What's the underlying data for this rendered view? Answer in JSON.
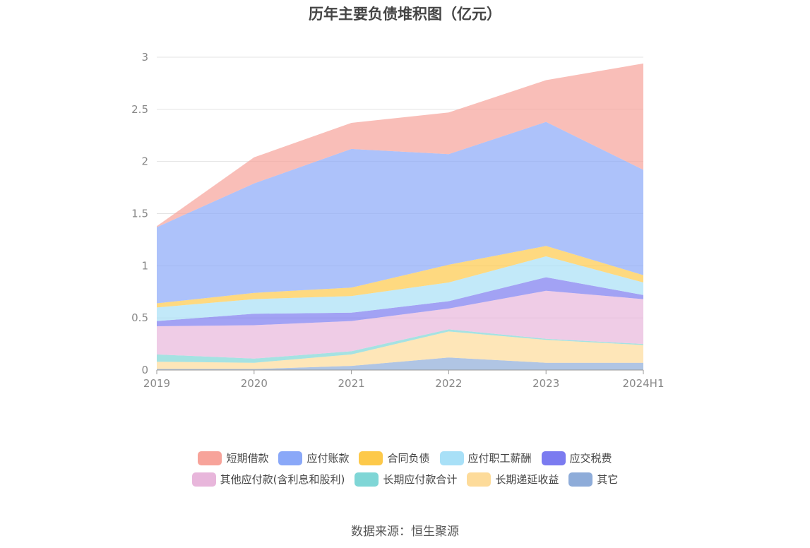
{
  "title": "历年主要负债堆积图（亿元）",
  "source": "数据来源：恒生聚源",
  "chart_data": {
    "type": "area",
    "stacked": true,
    "categories": [
      "2019",
      "2020",
      "2021",
      "2022",
      "2023",
      "2024H1"
    ],
    "yticks": [
      "0",
      "0.5",
      "1",
      "1.5",
      "2",
      "2.5",
      "3"
    ],
    "ylim": [
      0,
      3
    ],
    "grid": true,
    "legend_position": "bottom",
    "series": [
      {
        "name": "其它",
        "color": "#8eacd9",
        "values": [
          0.01,
          0.01,
          0.04,
          0.12,
          0.07,
          0.07
        ]
      },
      {
        "name": "长期递延收益",
        "color": "#fddb9a",
        "values": [
          0.07,
          0.06,
          0.11,
          0.25,
          0.22,
          0.17
        ]
      },
      {
        "name": "长期应付款合计",
        "color": "#7fd6d6",
        "values": [
          0.07,
          0.04,
          0.03,
          0.02,
          0.01,
          0.01
        ]
      },
      {
        "name": "其他应付款(含利息和股利)",
        "color": "#e8b6db",
        "values": [
          0.27,
          0.32,
          0.29,
          0.2,
          0.46,
          0.43
        ]
      },
      {
        "name": "应交税费",
        "color": "#7b7bf0",
        "values": [
          0.05,
          0.11,
          0.08,
          0.07,
          0.13,
          0.04
        ]
      },
      {
        "name": "应付职工薪酬",
        "color": "#a8e0f7",
        "values": [
          0.13,
          0.14,
          0.16,
          0.18,
          0.2,
          0.12
        ]
      },
      {
        "name": "合同负债",
        "color": "#fdc94a",
        "values": [
          0.04,
          0.06,
          0.08,
          0.17,
          0.1,
          0.07
        ]
      },
      {
        "name": "应付账款",
        "color": "#8aa8f8",
        "values": [
          0.73,
          1.05,
          1.33,
          1.06,
          1.19,
          1.01
        ]
      },
      {
        "name": "短期借款",
        "color": "#f7a39a",
        "values": [
          0.01,
          0.25,
          0.25,
          0.4,
          0.4,
          1.02
        ]
      }
    ],
    "legend_rows": [
      [
        {
          "name": "短期借款",
          "color": "#f7a39a"
        },
        {
          "name": "应付账款",
          "color": "#8aa8f8"
        },
        {
          "name": "合同负债",
          "color": "#fdc94a"
        },
        {
          "name": "应付职工薪酬",
          "color": "#a8e0f7"
        },
        {
          "name": "应交税费",
          "color": "#7b7bf0"
        }
      ],
      [
        {
          "name": "其他应付款(含利息和股利)",
          "color": "#e8b6db"
        },
        {
          "name": "长期应付款合计",
          "color": "#7fd6d6"
        },
        {
          "name": "长期递延收益",
          "color": "#fddb9a"
        },
        {
          "name": "其它",
          "color": "#8eacd9"
        }
      ]
    ]
  }
}
